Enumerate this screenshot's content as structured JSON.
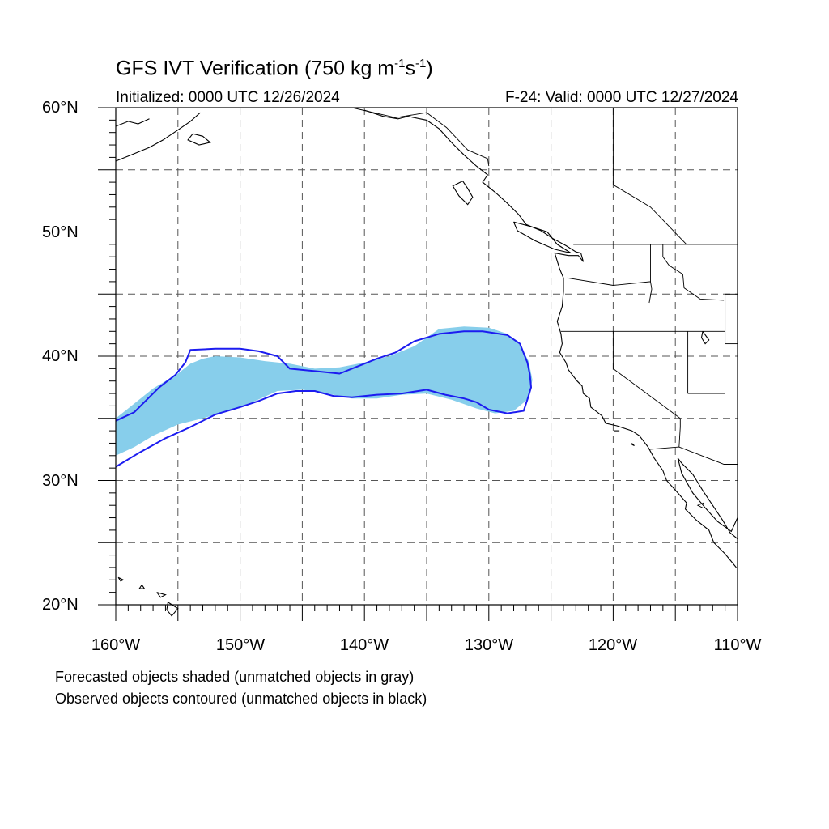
{
  "header": {
    "title_main": "GFS IVT Verification (750 kg m",
    "title_exp1": "-1",
    "title_mid": "s",
    "title_exp2": "-1",
    "title_end": ")",
    "initialized": "Initialized: 0000 UTC 12/26/2024",
    "valid": "F-24: Valid: 0000 UTC 12/27/2024"
  },
  "axes": {
    "lat_labels": [
      "60°N",
      "50°N",
      "40°N",
      "30°N",
      "20°N"
    ],
    "lon_labels": [
      "160°W",
      "150°W",
      "140°W",
      "130°W",
      "120°W",
      "110°W"
    ],
    "lat_range": [
      20,
      60
    ],
    "lon_range": [
      -160,
      -110
    ],
    "grid": "dashed every 5 degrees"
  },
  "legend_notes": {
    "line1": "Forecasted objects shaded (unmatched objects in gray)",
    "line2": "Observed objects contoured (unmatched objects in black)"
  },
  "colors": {
    "forecast_fill": "#87ceeb",
    "observed_contour": "#1c1cf0",
    "coastline": "#000000",
    "grid": "#555555"
  },
  "objects": {
    "forecast_shaded_lonlat": [
      [
        -160,
        35
      ],
      [
        -159,
        35.8
      ],
      [
        -158,
        36.6
      ],
      [
        -157,
        37.4
      ],
      [
        -156,
        38
      ],
      [
        -155,
        38.6
      ],
      [
        -154,
        39.4
      ],
      [
        -153,
        39.8
      ],
      [
        -152,
        40
      ],
      [
        -150,
        39.9
      ],
      [
        -148,
        39.6
      ],
      [
        -146,
        39.4
      ],
      [
        -144,
        39
      ],
      [
        -142,
        39.1
      ],
      [
        -140,
        39.5
      ],
      [
        -138,
        40
      ],
      [
        -136,
        40.8
      ],
      [
        -134,
        42.2
      ],
      [
        -132,
        42.4
      ],
      [
        -130,
        42.3
      ],
      [
        -128.5,
        41.8
      ],
      [
        -127.5,
        40.9
      ],
      [
        -126.8,
        39.6
      ],
      [
        -126.5,
        38.1
      ],
      [
        -126.8,
        36.6
      ],
      [
        -128,
        35.6
      ],
      [
        -129.5,
        35.4
      ],
      [
        -131,
        35.8
      ],
      [
        -133,
        36.5
      ],
      [
        -135,
        37
      ],
      [
        -137,
        36.9
      ],
      [
        -139,
        36.6
      ],
      [
        -141,
        36.6
      ],
      [
        -143,
        37
      ],
      [
        -145,
        37.3
      ],
      [
        -147,
        37.2
      ],
      [
        -149,
        36.3
      ],
      [
        -151,
        35.6
      ],
      [
        -153,
        35
      ],
      [
        -155,
        34.5
      ],
      [
        -157,
        33.6
      ],
      [
        -158.5,
        32.7
      ],
      [
        -160,
        32
      ]
    ],
    "observed_contour_lonlat": [
      [
        -160,
        34.8
      ],
      [
        -158.5,
        35.5
      ],
      [
        -157.5,
        36.5
      ],
      [
        -156.5,
        37.5
      ],
      [
        -155.2,
        38.5
      ],
      [
        -154.4,
        39.5
      ],
      [
        -154,
        40.5
      ],
      [
        -152,
        40.6
      ],
      [
        -150,
        40.6
      ],
      [
        -148.5,
        40.4
      ],
      [
        -147,
        40
      ],
      [
        -146,
        39
      ],
      [
        -144,
        38.8
      ],
      [
        -142,
        38.6
      ],
      [
        -140.5,
        39.2
      ],
      [
        -139,
        39.8
      ],
      [
        -137.5,
        40.3
      ],
      [
        -136,
        41.2
      ],
      [
        -134,
        41.8
      ],
      [
        -132,
        42
      ],
      [
        -130.5,
        42
      ],
      [
        -128.5,
        41.7
      ],
      [
        -127.5,
        41
      ],
      [
        -126.9,
        39.5
      ],
      [
        -126.7,
        38.5
      ],
      [
        -126.6,
        37.5
      ],
      [
        -126.9,
        36.5
      ],
      [
        -127.2,
        35.6
      ],
      [
        -128.5,
        35.4
      ],
      [
        -130,
        35.7
      ],
      [
        -131,
        36.3
      ],
      [
        -132,
        36.6
      ],
      [
        -133.5,
        36.9
      ],
      [
        -135,
        37.3
      ],
      [
        -137,
        37
      ],
      [
        -139,
        36.9
      ],
      [
        -141,
        36.7
      ],
      [
        -142.5,
        36.8
      ],
      [
        -144,
        37.2
      ],
      [
        -145.5,
        37.2
      ],
      [
        -147,
        37
      ],
      [
        -148.5,
        36.4
      ],
      [
        -150,
        35.9
      ],
      [
        -152,
        35.3
      ],
      [
        -154,
        34.3
      ],
      [
        -156,
        33.4
      ],
      [
        -158,
        32.3
      ],
      [
        -160,
        31.1
      ]
    ]
  }
}
